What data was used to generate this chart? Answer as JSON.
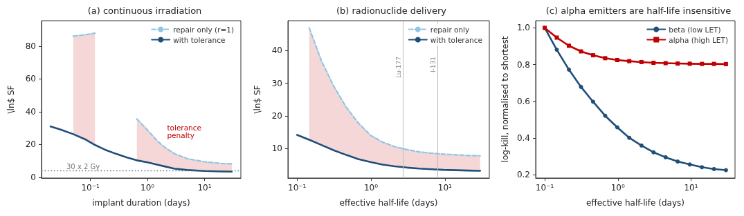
{
  "chart_data": [
    {
      "type": "line",
      "title": "(a) continuous irradiation",
      "xlabel": "implant duration (days)",
      "ylabel": "\\ln$ SF",
      "log": "x",
      "legend": "top right",
      "grid": false,
      "marker": "none",
      "x": [
        0.02,
        0.03,
        0.05,
        0.08,
        0.12,
        0.18,
        0.28,
        0.43,
        0.65,
        1,
        1.5,
        2,
        3,
        5,
        10,
        20,
        30
      ],
      "xlim": [
        0.0139,
        43.3
      ],
      "xticks": [
        {
          "value": 0.1,
          "label": "10⁻¹"
        },
        {
          "value": 1,
          "label": "10⁰"
        },
        {
          "value": 10,
          "label": "10¹"
        }
      ],
      "ylim": [
        -0.5,
        95.5
      ],
      "yticks": [
        0,
        20,
        40,
        60,
        80
      ],
      "series": [
        {
          "name": "repair only (r=1)",
          "color": "#92c5e3",
          "line_style": "dashed",
          "values": [
            null,
            null,
            86.1,
            86.9,
            87.9,
            null,
            null,
            null,
            35.6,
            28.8,
            22,
            18.3,
            14.3,
            11.3,
            9.4,
            8.4,
            8.2
          ],
          "lower": [
            null,
            null,
            26.3,
            23.2,
            19.7,
            null,
            null,
            null,
            10.3,
            9.1,
            7.6,
            6.6,
            5.2,
            4.4,
            3.8,
            3.5,
            3.4
          ],
          "upper": [
            null,
            null,
            86.1,
            86.9,
            87.9,
            null,
            null,
            null,
            35.6,
            28.8,
            22,
            18.3,
            14.3,
            11.3,
            9.4,
            8.4,
            8.2
          ]
        },
        {
          "name": "with tolerance",
          "color": "#1f4e79",
          "line_style": "solid",
          "values": [
            31,
            29.1,
            26.3,
            23.2,
            19.7,
            16.8,
            14.3,
            12.1,
            10.3,
            9.1,
            7.6,
            6.6,
            5.2,
            4.4,
            3.8,
            3.5,
            3.4
          ]
        }
      ],
      "ref_lines": [
        {
          "axis": "y",
          "value": 4.1,
          "label": "30 x 2 Gy",
          "color": "#666666",
          "line_style": "dotted"
        }
      ],
      "annotations": [
        "tolerance\npenalty"
      ]
    },
    {
      "type": "line",
      "title": "(b) radionuclide delivery",
      "xlabel": "effective half-life (days)",
      "ylabel": "\\ln$ SF",
      "log": "x",
      "legend": "top right",
      "grid": false,
      "marker": "none",
      "x": [
        0.1,
        0.146,
        0.214,
        0.313,
        0.458,
        0.67,
        0.98,
        1.43,
        2.1,
        3.07,
        4.49,
        6.57,
        9.61,
        14.1,
        20.6,
        30
      ],
      "xlim": [
        0.0752,
        39.9
      ],
      "xticks": [
        {
          "value": 0.1,
          "label": "10⁻¹"
        },
        {
          "value": 1,
          "label": "10⁰"
        },
        {
          "value": 10,
          "label": "10¹"
        }
      ],
      "ylim": [
        1,
        49.1
      ],
      "yticks": [
        10,
        20,
        30,
        40
      ],
      "series": [
        {
          "name": "repair only",
          "color": "#92c5e3",
          "line_style": "dashed",
          "values": [
            null,
            46.9,
            36.8,
            29.1,
            22.8,
            17.9,
            14.1,
            12,
            10.6,
            9.7,
            9,
            8.6,
            8.3,
            8.1,
            7.9,
            7.8
          ],
          "lower": [
            null,
            12.7,
            11.1,
            9.5,
            8.1,
            6.8,
            5.9,
            5.1,
            4.6,
            4.2,
            3.9,
            3.7,
            3.5,
            3.4,
            3.3,
            3.2
          ],
          "upper": [
            null,
            46.9,
            36.8,
            29.1,
            22.8,
            17.9,
            14.1,
            12,
            10.6,
            9.7,
            9,
            8.6,
            8.3,
            8.1,
            7.9,
            7.8
          ]
        },
        {
          "name": "with tolerance",
          "color": "#1f4e79",
          "line_style": "solid",
          "values": [
            14.2,
            12.7,
            11.1,
            9.5,
            8.1,
            6.8,
            5.9,
            5.1,
            4.6,
            4.2,
            3.9,
            3.7,
            3.5,
            3.4,
            3.3,
            3.2
          ]
        }
      ],
      "ref_lines": [
        {
          "axis": "x",
          "value": 2.7,
          "label": "Lu-177",
          "color": "#bbbbbb",
          "line_style": "solid"
        },
        {
          "axis": "x",
          "value": 8,
          "label": "I-131",
          "color": "#bbbbbb",
          "line_style": "solid"
        }
      ]
    },
    {
      "type": "line",
      "title": "(c) alpha emitters are half-life insensitive",
      "xlabel": "effective half-life (days)",
      "ylabel": "log-kill, normalised to shortest",
      "log": "x",
      "legend": "top right",
      "grid": false,
      "x": [
        0.1,
        0.146,
        0.214,
        0.313,
        0.458,
        0.67,
        0.98,
        1.43,
        2.1,
        3.07,
        4.49,
        6.57,
        9.61,
        14.1,
        20.6,
        30
      ],
      "xlim": [
        0.0752,
        39.9
      ],
      "xticks": [
        {
          "value": 0.1,
          "label": "10⁻¹"
        },
        {
          "value": 1,
          "label": "10⁰"
        },
        {
          "value": 10,
          "label": "10¹"
        }
      ],
      "ylim": [
        0.183,
        1.039
      ],
      "yticks": [
        0.2,
        0.4,
        0.6,
        0.8,
        {
          "value": 1,
          "label": "1.0"
        }
      ],
      "series": [
        {
          "name": "beta (low LET)",
          "color": "#1f4e79",
          "marker": "circle",
          "values": [
            1,
            0.881,
            0.773,
            0.679,
            0.598,
            0.522,
            0.459,
            0.402,
            0.36,
            0.323,
            0.296,
            0.273,
            0.257,
            0.242,
            0.232,
            0.226
          ]
        },
        {
          "name": "alpha (high LET)",
          "color": "#c00000",
          "marker": "square",
          "values": [
            1,
            0.947,
            0.903,
            0.872,
            0.851,
            0.835,
            0.825,
            0.819,
            0.814,
            0.81,
            0.808,
            0.806,
            0.805,
            0.804,
            0.804,
            0.803
          ]
        }
      ]
    }
  ]
}
